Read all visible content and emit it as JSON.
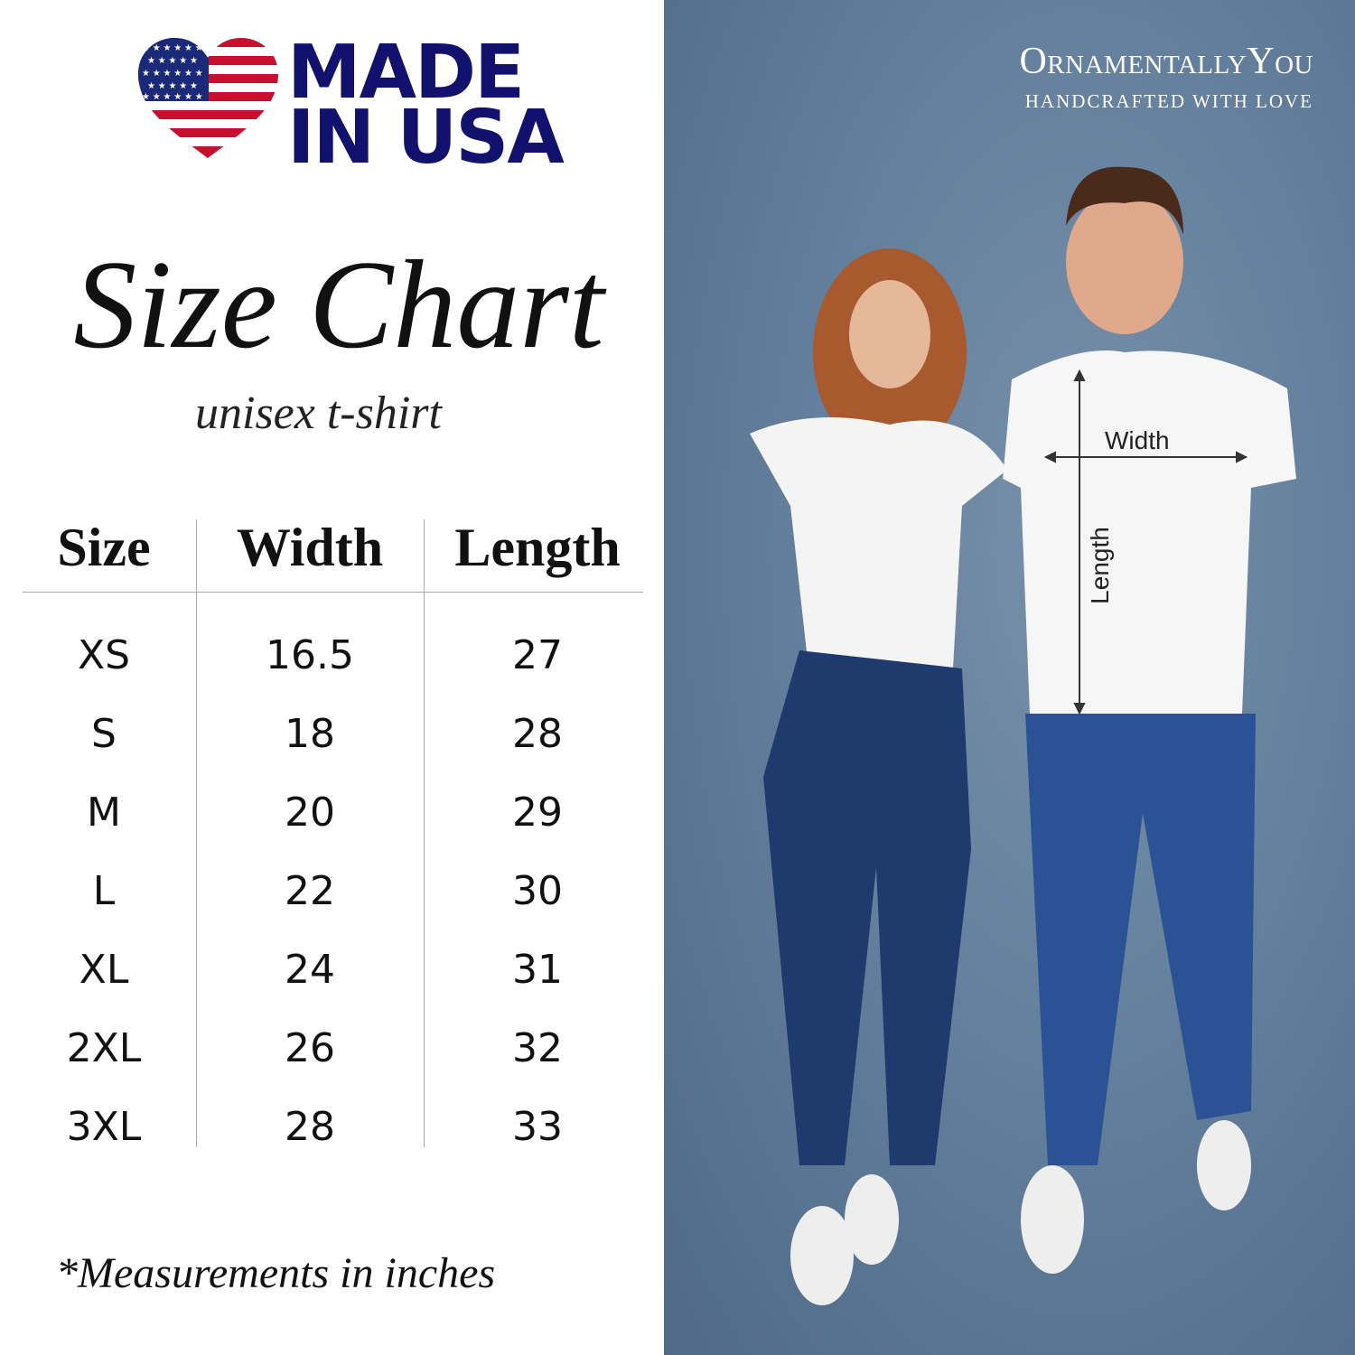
{
  "badge": {
    "line1": "MADE",
    "line2": "IN USA",
    "icon": "us-flag-heart-icon",
    "colors": {
      "navy": "#12126e",
      "red": "#c8102e"
    }
  },
  "title": "Size Chart",
  "subtitle": "unisex t-shirt",
  "table": {
    "headers": [
      "Size",
      "Width",
      "Length"
    ],
    "rows": [
      {
        "size": "XS",
        "width": "16.5",
        "length": "27"
      },
      {
        "size": "S",
        "width": "18",
        "length": "28"
      },
      {
        "size": "M",
        "width": "20",
        "length": "29"
      },
      {
        "size": "L",
        "width": "22",
        "length": "30"
      },
      {
        "size": "XL",
        "width": "24",
        "length": "31"
      },
      {
        "size": "2XL",
        "width": "26",
        "length": "32"
      },
      {
        "size": "3XL",
        "width": "28",
        "length": "33"
      }
    ]
  },
  "note": "*Measurements in inches",
  "brand": {
    "name": "OrnamentallyYou",
    "tagline": "HANDCRAFTED WITH LOVE"
  },
  "photo": {
    "annotations": {
      "width": "Width",
      "length": "Length"
    },
    "background": "#64809c"
  }
}
